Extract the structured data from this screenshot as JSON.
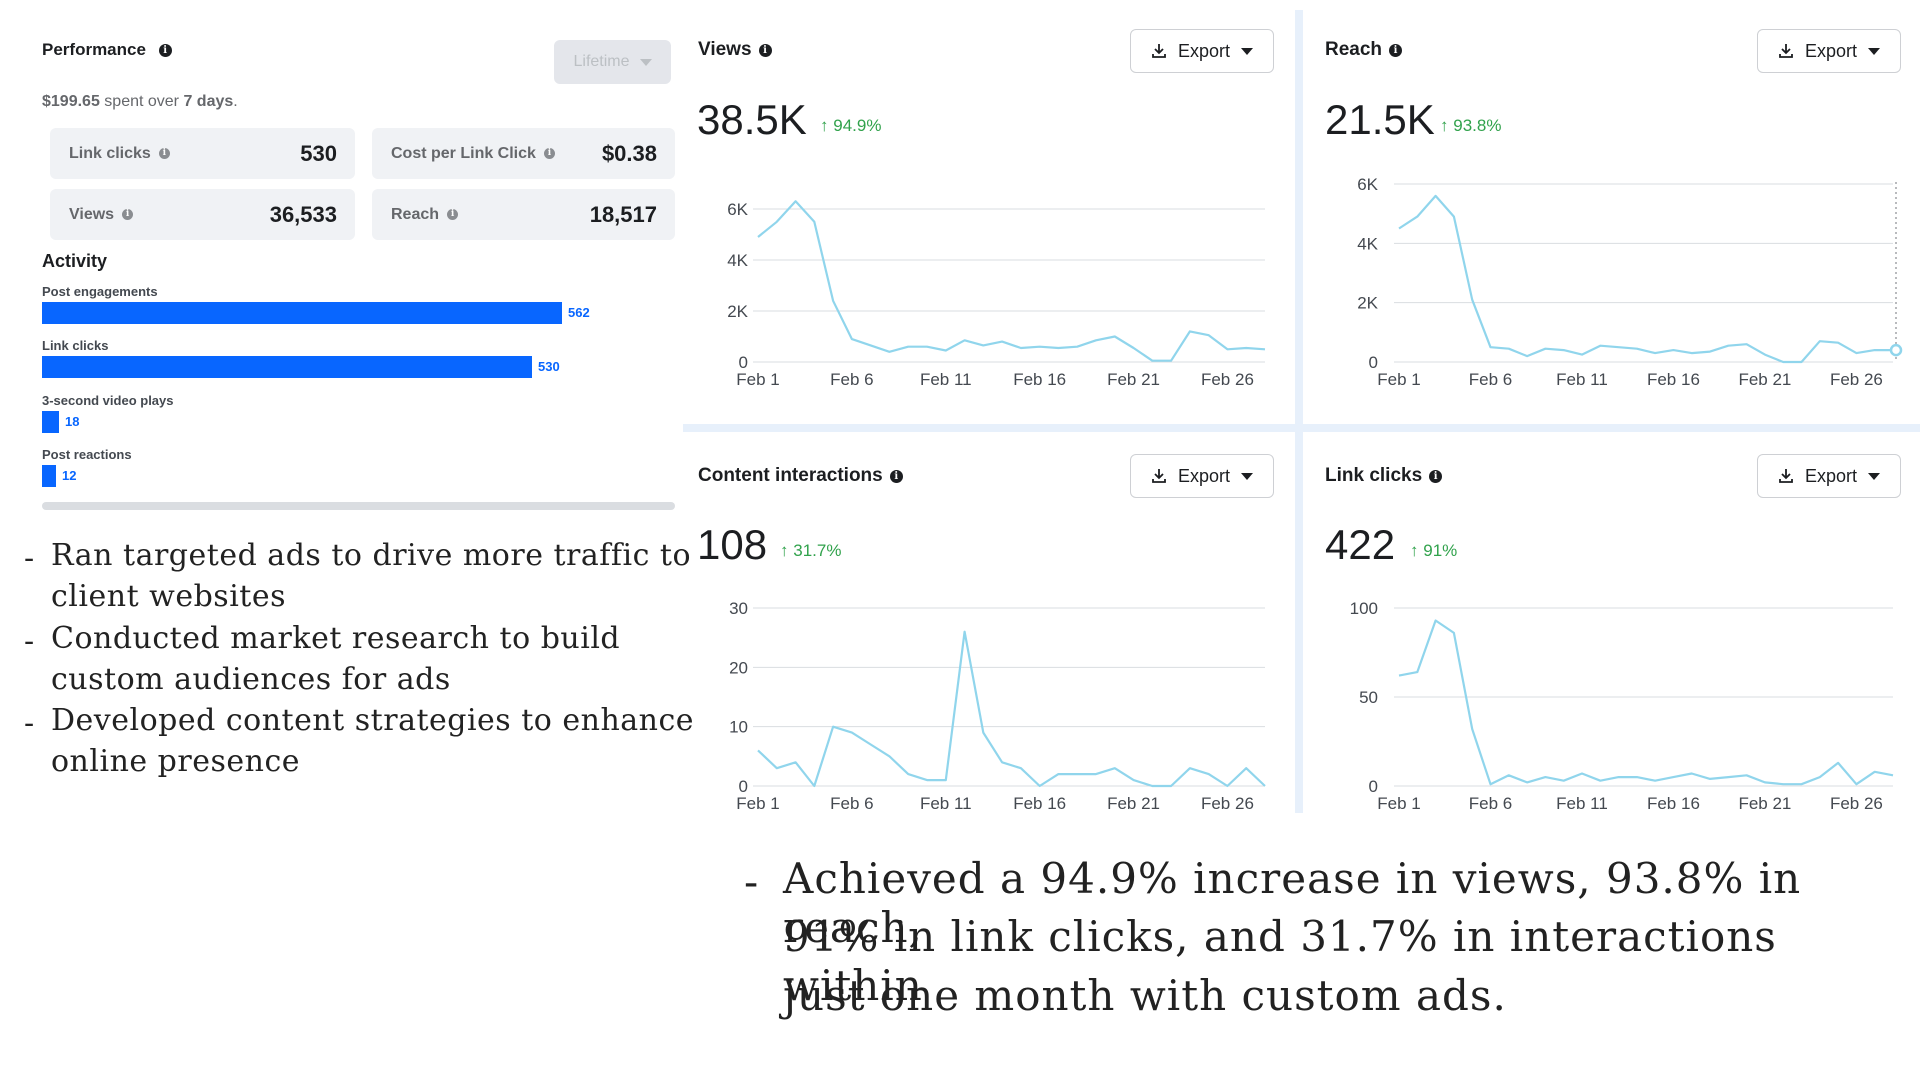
{
  "performance": {
    "title": "Performance",
    "lifetime_label": "Lifetime",
    "spent_amount": "$199.65",
    "spent_mid": " spent over ",
    "spent_days": "7 days",
    "spent_end": ".",
    "stats": [
      {
        "label": "Link clicks",
        "value": "530"
      },
      {
        "label": "Cost per Link Click",
        "value": "$0.38"
      },
      {
        "label": "Views",
        "value": "36,533"
      },
      {
        "label": "Reach",
        "value": "18,517"
      }
    ]
  },
  "activity": {
    "title": "Activity",
    "bars": [
      {
        "label": "Post engagements",
        "value": 562
      },
      {
        "label": "Link clicks",
        "value": 530
      },
      {
        "label": "3-second video plays",
        "value": 18
      },
      {
        "label": "Post reactions",
        "value": 12
      }
    ]
  },
  "bullets_left": [
    {
      "line1": "Ran targeted ads to drive more traffic to",
      "line2": "client websites"
    },
    {
      "line1": "Conducted market research to build",
      "line2": "custom audiences for ads"
    },
    {
      "line1": "Developed content strategies to enhance",
      "line2": "online presence"
    }
  ],
  "bullet_dash": "-",
  "bullet_bottom": {
    "line1": "Achieved a 94.9% increase in views, 93.8% in reach,",
    "line2": "91% in link clicks, and 31.7% in interactions within",
    "line3": "just one month with custom ads."
  },
  "export_label": "Export",
  "colors": {
    "bar": "#0866ff",
    "line": "#90d5ec",
    "positive": "#31a24c"
  },
  "chart_data": [
    {
      "type": "line",
      "title": "Views",
      "total": "38.5K",
      "change": "94.9%",
      "x_ticks": [
        "Feb 1",
        "Feb 6",
        "Feb 11",
        "Feb 16",
        "Feb 21",
        "Feb 26"
      ],
      "y_ticks": [
        "6K",
        "4K",
        "2K",
        "0"
      ],
      "ylim": [
        0,
        6000
      ],
      "values": [
        4900,
        5500,
        6300,
        5500,
        2400,
        900,
        650,
        400,
        600,
        600,
        450,
        850,
        650,
        800,
        550,
        600,
        550,
        600,
        850,
        1000,
        550,
        50,
        50,
        1200,
        1050,
        500,
        550,
        500
      ]
    },
    {
      "type": "line",
      "title": "Reach",
      "total": "21.5K",
      "change": "93.8%",
      "x_ticks": [
        "Feb 1",
        "Feb 6",
        "Feb 11",
        "Feb 16",
        "Feb 21",
        "Feb 26"
      ],
      "y_ticks": [
        "6K",
        "4K",
        "2K",
        "0"
      ],
      "ylim": [
        0,
        6000
      ],
      "values": [
        4500,
        4900,
        5600,
        4900,
        2100,
        500,
        450,
        200,
        450,
        400,
        250,
        550,
        500,
        450,
        300,
        400,
        300,
        350,
        550,
        600,
        250,
        0,
        0,
        700,
        650,
        300,
        400,
        400
      ]
    },
    {
      "type": "line",
      "title": "Content interactions",
      "total": "108",
      "change": "31.7%",
      "x_ticks": [
        "Feb 1",
        "Feb 6",
        "Feb 11",
        "Feb 16",
        "Feb 21",
        "Feb 26"
      ],
      "y_ticks": [
        "30",
        "20",
        "10",
        "0"
      ],
      "ylim": [
        0,
        30
      ],
      "values": [
        6,
        3,
        4,
        0,
        10,
        9,
        7,
        5,
        2,
        1,
        1,
        26,
        9,
        4,
        3,
        0,
        2,
        2,
        2,
        3,
        1,
        0,
        0,
        3,
        2,
        0,
        3,
        0
      ]
    },
    {
      "type": "line",
      "title": "Link clicks",
      "total": "422",
      "change": "91%",
      "x_ticks": [
        "Feb 1",
        "Feb 6",
        "Feb 11",
        "Feb 16",
        "Feb 21",
        "Feb 26"
      ],
      "y_ticks": [
        "100",
        "50",
        "0"
      ],
      "ylim": [
        0,
        100
      ],
      "values": [
        62,
        64,
        93,
        86,
        32,
        1,
        6,
        2,
        5,
        3,
        7,
        3,
        5,
        5,
        3,
        5,
        7,
        4,
        5,
        6,
        2,
        1,
        1,
        5,
        13,
        1,
        8,
        6
      ]
    }
  ]
}
